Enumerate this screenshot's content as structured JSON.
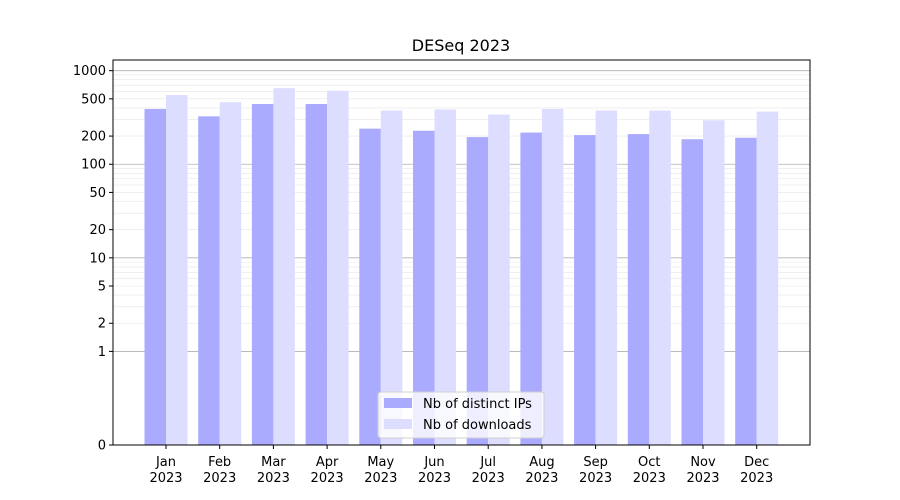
{
  "chart_data": {
    "type": "bar",
    "title": "DESeq 2023",
    "xlabel": "",
    "ylabel": "",
    "yscale": "symlog",
    "ylim": [
      0,
      1300
    ],
    "y_ticks": [
      0,
      1,
      2,
      5,
      10,
      20,
      50,
      100,
      200,
      500,
      1000
    ],
    "categories": [
      "Jan\n2023",
      "Feb\n2023",
      "Mar\n2023",
      "Apr\n2023",
      "May\n2023",
      "Jun\n2023",
      "Jul\n2023",
      "Aug\n2023",
      "Sep\n2023",
      "Oct\n2023",
      "Nov\n2023",
      "Dec\n2023"
    ],
    "series": [
      {
        "name": "Nb of distinct IPs",
        "color": "#aaaaff",
        "values": [
          390,
          325,
          440,
          440,
          240,
          228,
          195,
          218,
          205,
          210,
          185,
          192
        ]
      },
      {
        "name": "Nb of downloads",
        "color": "#ddddff",
        "values": [
          550,
          460,
          650,
          610,
          375,
          385,
          340,
          390,
          375,
          375,
          295,
          365
        ]
      }
    ],
    "grid": true,
    "legend_position": "bottom-center"
  }
}
